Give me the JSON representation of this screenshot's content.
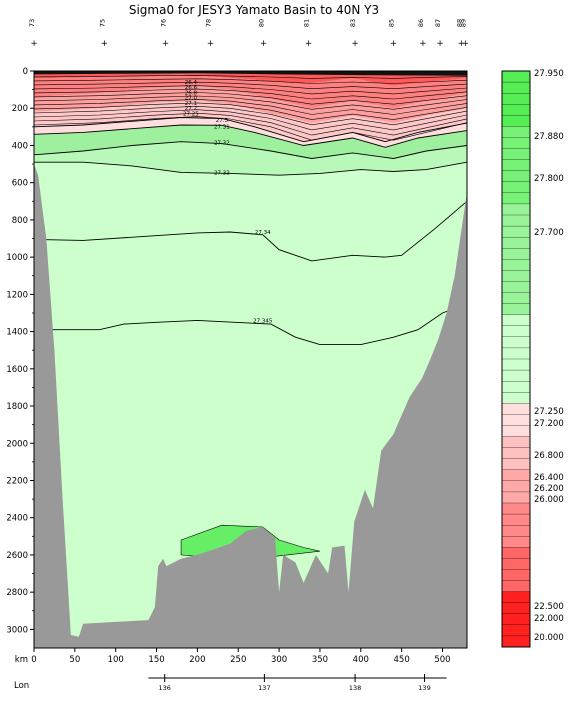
{
  "chart_data": {
    "type": "area",
    "title": "Sigma0 for JESY3 Yamato Basin to 40N Y3",
    "x_axis": {
      "label": "km",
      "range": [
        0,
        530
      ],
      "ticks": [
        0,
        50,
        100,
        150,
        200,
        250,
        300,
        350,
        400,
        450,
        500
      ]
    },
    "y_axis": {
      "range": [
        0,
        3100
      ],
      "inverted": true,
      "ticks": [
        0,
        200,
        400,
        600,
        800,
        1000,
        1200,
        1400,
        1600,
        1800,
        2000,
        2200,
        2400,
        2600,
        2800,
        3000
      ]
    },
    "lon_axis": {
      "label": "Lon",
      "ticks": [
        {
          "km": 160,
          "label": "136"
        },
        {
          "km": 282,
          "label": "137"
        },
        {
          "km": 393,
          "label": "138"
        },
        {
          "km": 478,
          "label": "139"
        }
      ]
    },
    "stations": [
      {
        "km": 0,
        "label": "73"
      },
      {
        "km": 86,
        "label": "75"
      },
      {
        "km": 161,
        "label": "76"
      },
      {
        "km": 216,
        "label": "78"
      },
      {
        "km": 281,
        "label": "80"
      },
      {
        "km": 336,
        "label": "81"
      },
      {
        "km": 393,
        "label": "83"
      },
      {
        "km": 440,
        "label": "85"
      },
      {
        "km": 476,
        "label": "86"
      },
      {
        "km": 497,
        "label": "87"
      },
      {
        "km": 523,
        "label": "88"
      },
      {
        "km": 528,
        "label": "89"
      }
    ],
    "contours": [
      {
        "level": "27.3",
        "points": [
          [
            0,
            300
          ],
          [
            60,
            290
          ],
          [
            120,
            270
          ],
          [
            180,
            250
          ],
          [
            230,
            255
          ],
          [
            270,
            300
          ],
          [
            330,
            380
          ],
          [
            390,
            330
          ],
          [
            430,
            380
          ],
          [
            470,
            330
          ],
          [
            530,
            280
          ]
        ]
      },
      {
        "level": "27.31",
        "points": [
          [
            0,
            340
          ],
          [
            60,
            330
          ],
          [
            120,
            310
          ],
          [
            180,
            290
          ],
          [
            230,
            292
          ],
          [
            270,
            330
          ],
          [
            330,
            400
          ],
          [
            390,
            360
          ],
          [
            430,
            410
          ],
          [
            470,
            360
          ],
          [
            530,
            320
          ]
        ]
      },
      {
        "level": "27.32",
        "points": [
          [
            0,
            450
          ],
          [
            60,
            430
          ],
          [
            120,
            400
          ],
          [
            180,
            380
          ],
          [
            230,
            390
          ],
          [
            290,
            430
          ],
          [
            340,
            470
          ],
          [
            390,
            440
          ],
          [
            440,
            470
          ],
          [
            480,
            430
          ],
          [
            530,
            400
          ]
        ]
      },
      {
        "level": "27.33",
        "points": [
          [
            0,
            490
          ],
          [
            60,
            490
          ],
          [
            120,
            510
          ],
          [
            180,
            545
          ],
          [
            240,
            550
          ],
          [
            300,
            560
          ],
          [
            350,
            550
          ],
          [
            400,
            530
          ],
          [
            440,
            540
          ],
          [
            480,
            530
          ],
          [
            530,
            490
          ]
        ]
      },
      {
        "level": "27.34",
        "points": [
          [
            0,
            905
          ],
          [
            60,
            910
          ],
          [
            130,
            890
          ],
          [
            200,
            870
          ],
          [
            240,
            865
          ],
          [
            280,
            880
          ],
          [
            300,
            960
          ],
          [
            340,
            1020
          ],
          [
            390,
            990
          ],
          [
            430,
            1000
          ],
          [
            450,
            990
          ],
          [
            490,
            850
          ],
          [
            530,
            700
          ]
        ]
      },
      {
        "level": "27.345",
        "points": [
          [
            0,
            1390
          ],
          [
            80,
            1390
          ],
          [
            110,
            1360
          ],
          [
            150,
            1350
          ],
          [
            200,
            1340
          ],
          [
            290,
            1360
          ],
          [
            320,
            1430
          ],
          [
            350,
            1470
          ],
          [
            400,
            1470
          ],
          [
            440,
            1430
          ],
          [
            470,
            1390
          ],
          [
            500,
            1300
          ],
          [
            530,
            1250
          ]
        ]
      }
    ],
    "dense_contour_labels": [
      "26.4",
      "26.6",
      "26.8",
      "27.0",
      "27.1",
      "27.2",
      "27.25"
    ],
    "colorbar": {
      "labels": [
        "27.950",
        "27.880",
        "27.800",
        "27.700",
        "27.250",
        "27.200",
        "26.800",
        "26.400",
        "26.200",
        "26.000",
        "22.500",
        "22.000",
        "20.000"
      ]
    }
  }
}
